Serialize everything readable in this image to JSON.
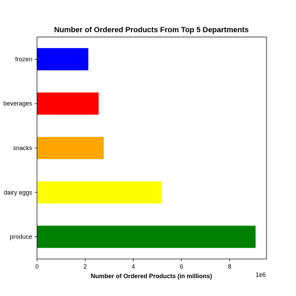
{
  "chart_data": {
    "type": "bar",
    "orientation": "horizontal",
    "title": "Number of Ordered Products From Top 5 Departments",
    "xlabel": "Number of Ordered Products (in millions)",
    "ylabel": "",
    "categories": [
      "produce",
      "dairy eggs",
      "snacks",
      "beverages",
      "frozen"
    ],
    "values": [
      9080000,
      5190000,
      2770000,
      2560000,
      2130000
    ],
    "colors": [
      "#008000",
      "#ffff00",
      "#ffa500",
      "#ff0000",
      "#0000ff"
    ],
    "xlim": [
      0,
      9534000
    ],
    "xticks": [
      0,
      2,
      4,
      6,
      8
    ],
    "x_offset_label": "1e6",
    "grid": false,
    "legend": "none"
  }
}
